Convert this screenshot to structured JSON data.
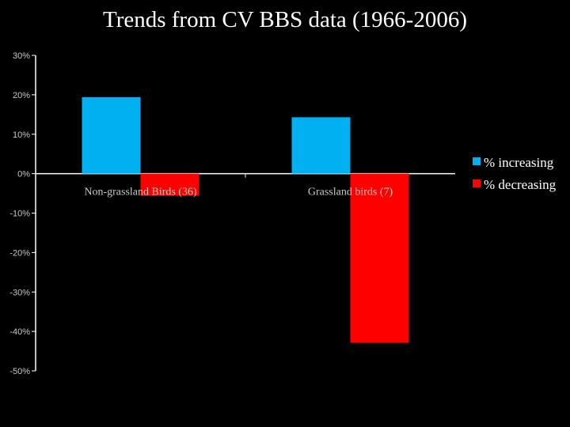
{
  "chart_data": {
    "type": "bar",
    "title": "Trends from CV BBS data (1966-2006)",
    "xlabel": "",
    "ylabel": "",
    "categories": [
      "Non-grassland Birds (36)",
      "Grassland birds (7)"
    ],
    "series": [
      {
        "name": "% increasing",
        "values": [
          19.4,
          14.3
        ],
        "color": "#00b0f0"
      },
      {
        "name": "% decreasing",
        "values": [
          -5.6,
          -42.9
        ],
        "color": "#ff0000"
      }
    ],
    "ylim": [
      -50,
      30
    ],
    "yticks": [
      30,
      20,
      10,
      0,
      -10,
      -20,
      -30,
      -40,
      -50
    ],
    "ytick_labels": [
      "30%",
      "20%",
      "10%",
      "0%",
      "-10%",
      "-20%",
      "-30%",
      "-40%",
      "-50%"
    ],
    "grid": false,
    "legend_position": "right"
  }
}
